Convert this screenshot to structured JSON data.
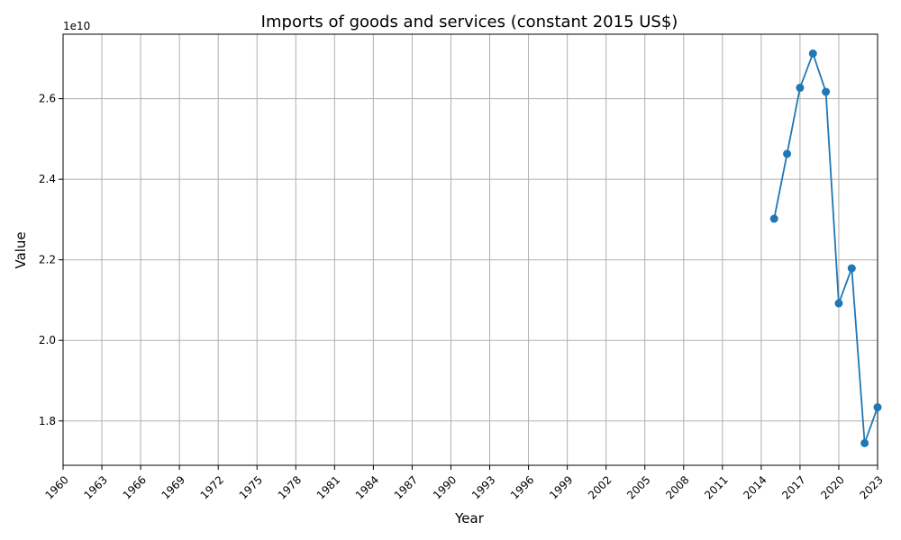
{
  "chart_data": {
    "type": "line",
    "title": "Imports of goods and services (constant 2015 US$)",
    "xlabel": "Year",
    "ylabel": "Value",
    "y_offset_label": "1e10",
    "y_scale_factor": 10000000000,
    "xlim": [
      1960,
      2023
    ],
    "ylim": [
      16900000000,
      27600000000
    ],
    "grid": true,
    "x_ticks": [
      1960,
      1963,
      1966,
      1969,
      1972,
      1975,
      1978,
      1981,
      1984,
      1987,
      1990,
      1993,
      1996,
      1999,
      2002,
      2005,
      2008,
      2011,
      2014,
      2017,
      2020,
      2023
    ],
    "y_ticks": [
      18000000000,
      20000000000,
      22000000000,
      24000000000,
      26000000000
    ],
    "y_tick_labels": [
      "1.8",
      "2.0",
      "2.2",
      "2.4",
      "2.6"
    ],
    "line_color": "#1f77b4",
    "series": [
      {
        "x": [
          2015,
          2016,
          2017,
          2018,
          2019,
          2020,
          2021,
          2022,
          2023
        ],
        "values": [
          23020000000,
          24630000000,
          26270000000,
          27120000000,
          26170000000,
          20920000000,
          21790000000,
          17450000000,
          18340000000
        ]
      }
    ]
  }
}
